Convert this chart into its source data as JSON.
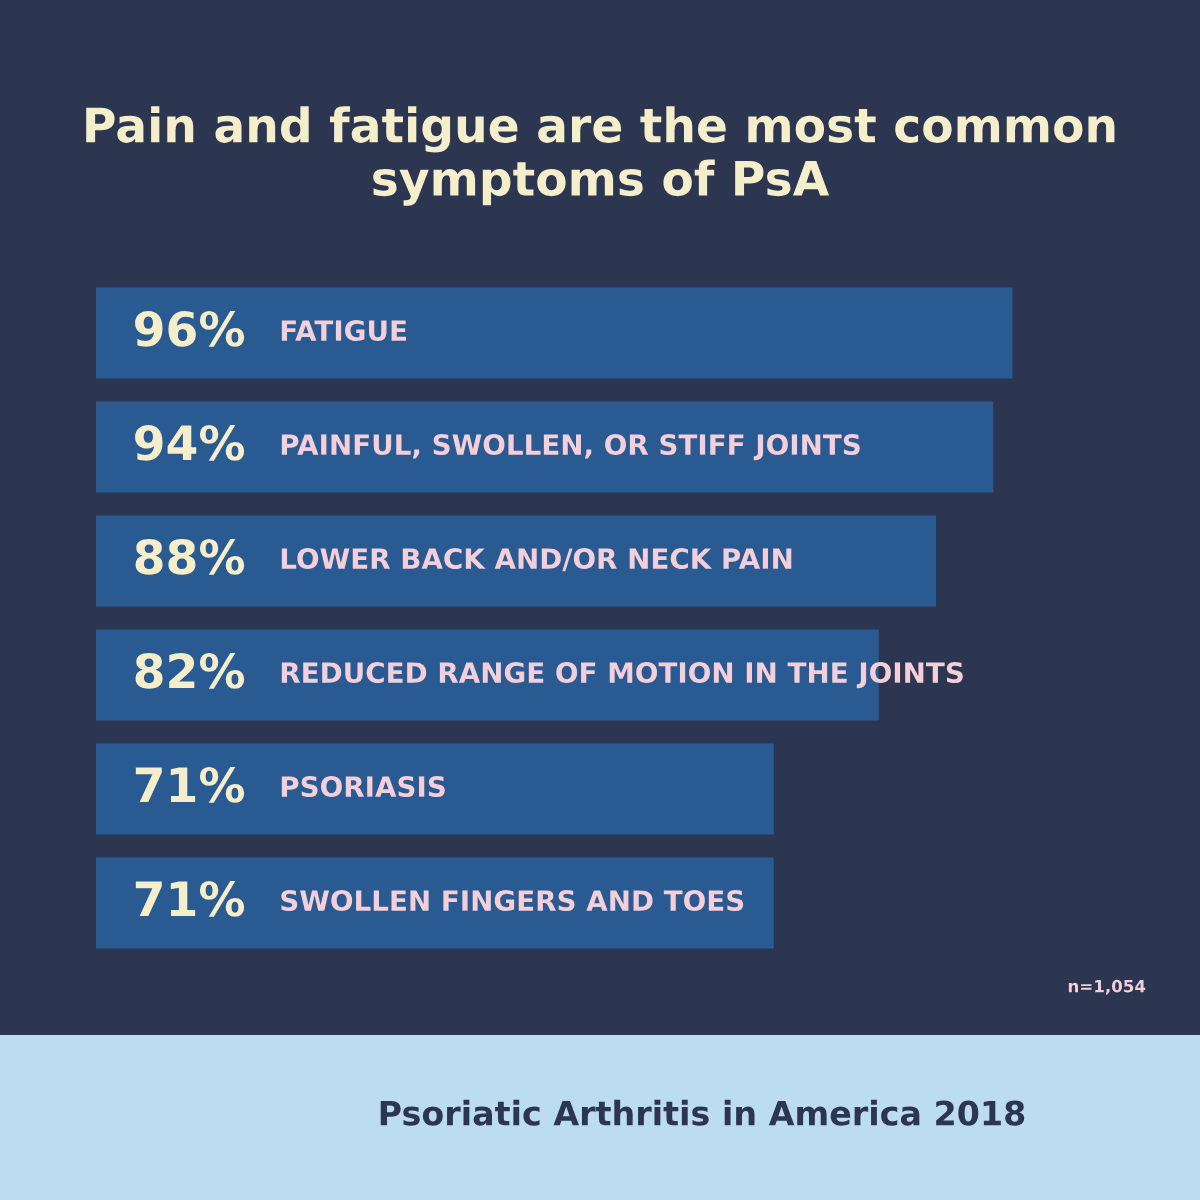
{
  "chart_data": {
    "type": "bar",
    "orientation": "horizontal",
    "title": "Pain and fatigue are the most common symptoms of PsA",
    "categories": [
      "FATIGUE",
      "PAINFUL, SWOLLEN, OR STIFF JOINTS",
      "LOWER BACK AND/OR NECK PAIN",
      "REDUCED RANGE OF MOTION IN THE JOINTS",
      "PSORIASIS",
      "SWOLLEN FINGERS AND TOES"
    ],
    "values": [
      96,
      94,
      88,
      82,
      71,
      71
    ],
    "value_labels": [
      "96%",
      "94%",
      "88%",
      "82%",
      "71%",
      "71%"
    ],
    "color": "#2a5a92",
    "annotations": [
      "n=1,054",
      "Psoriatic Arthritis in America 2018"
    ]
  }
}
